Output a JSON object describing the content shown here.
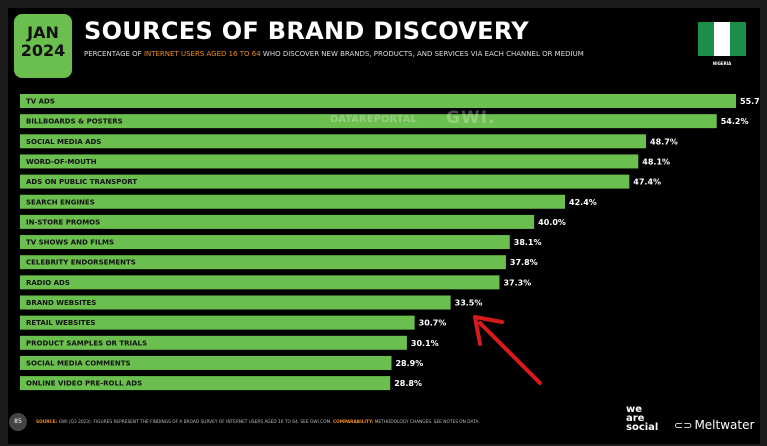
{
  "header": {
    "month": "JAN",
    "year": "2024",
    "title": "SOURCES OF BRAND DISCOVERY",
    "subtitle_pre": "PERCENTAGE OF ",
    "subtitle_hl": "INTERNET USERS AGED 16 TO 64",
    "subtitle_post": " WHO DISCOVER NEW BRANDS, PRODUCTS, AND SERVICES VIA EACH CHANNEL OR MEDIUM",
    "country": "NIGERIA"
  },
  "watermark": {
    "left": "DATAREPORTAL",
    "right": "GWI."
  },
  "colors": {
    "bar": "#6bbf4e",
    "accent": "#f08a24",
    "arrow": "#d91a1a",
    "flag_green": "#1b8f47"
  },
  "chart_data": {
    "type": "bar",
    "orientation": "horizontal",
    "categories": [
      "TV ADS",
      "BILLBOARDS & POSTERS",
      "SOCIAL MEDIA ADS",
      "WORD-OF-MOUTH",
      "ADS ON PUBLIC TRANSPORT",
      "SEARCH ENGINES",
      "IN-STORE PROMOS",
      "TV SHOWS AND FILMS",
      "CELEBRITY ENDORSEMENTS",
      "RADIO ADS",
      "BRAND WEBSITES",
      "RETAIL WEBSITES",
      "PRODUCT SAMPLES OR TRIALS",
      "SOCIAL MEDIA COMMENTS",
      "ONLINE VIDEO PRE-ROLL ADS"
    ],
    "values": [
      55.7,
      54.2,
      48.7,
      48.1,
      47.4,
      42.4,
      40.0,
      38.1,
      37.8,
      37.3,
      33.5,
      30.7,
      30.1,
      28.9,
      28.8
    ],
    "labels": [
      "55.7%",
      "54.2%",
      "48.7%",
      "48.1%",
      "47.4%",
      "42.4%",
      "40.0%",
      "38.1%",
      "37.8%",
      "37.3%",
      "33.5%",
      "30.7%",
      "30.1%",
      "28.9%",
      "28.8%"
    ],
    "xlim": [
      0,
      55.7
    ],
    "highlighted": "BRAND WEBSITES"
  },
  "footer": {
    "page": "85",
    "source_label": "SOURCE:",
    "source_text": " GWI (Q3 2023). FIGURES REPRESENT THE FINDINGS OF A BROAD SURVEY OF INTERNET USERS AGED 16 TO 64. SEE GWI.COM. ",
    "comparability_label": "COMPARABILITY:",
    "comparability_text": " METHODOLOGY CHANGES. SEE NOTES ON DATA.",
    "brand1": "we are social",
    "brand2": "Meltwater"
  }
}
